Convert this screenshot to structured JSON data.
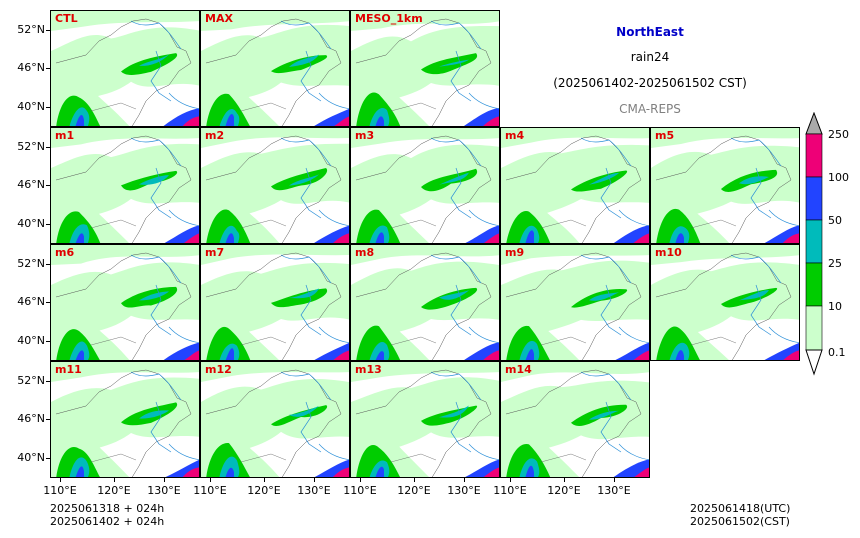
{
  "header": {
    "region": "NorthEast",
    "variable": "rain24",
    "period": "(2025061402-2025061502 CST)",
    "source": "CMA-REPS"
  },
  "panels": [
    [
      "CTL",
      "MAX",
      "MESO_1km"
    ],
    [
      "m1",
      "m2",
      "m3",
      "m4",
      "m5"
    ],
    [
      "m6",
      "m7",
      "m8",
      "m9",
      "m10"
    ],
    [
      "m11",
      "m12",
      "m13",
      "m14"
    ]
  ],
  "axes": {
    "lat_ticks": [
      "52°N",
      "46°N",
      "40°N"
    ],
    "lon_ticks": [
      "110°E",
      "120°E",
      "130°E"
    ]
  },
  "colorbar": {
    "levels": [
      "0.1",
      "10",
      "25",
      "50",
      "100",
      "250"
    ],
    "colors": [
      "#ccffcc",
      "#00cc00",
      "#00bbbb",
      "#2244ff",
      "#ee0077",
      "#aaaaaa"
    ]
  },
  "footer": {
    "init_utc": "2025061318  +  024h",
    "init_cst": "2025061402  +  024h",
    "valid_utc": "2025061418(UTC)",
    "valid_cst": "2025061502(CST)"
  }
}
